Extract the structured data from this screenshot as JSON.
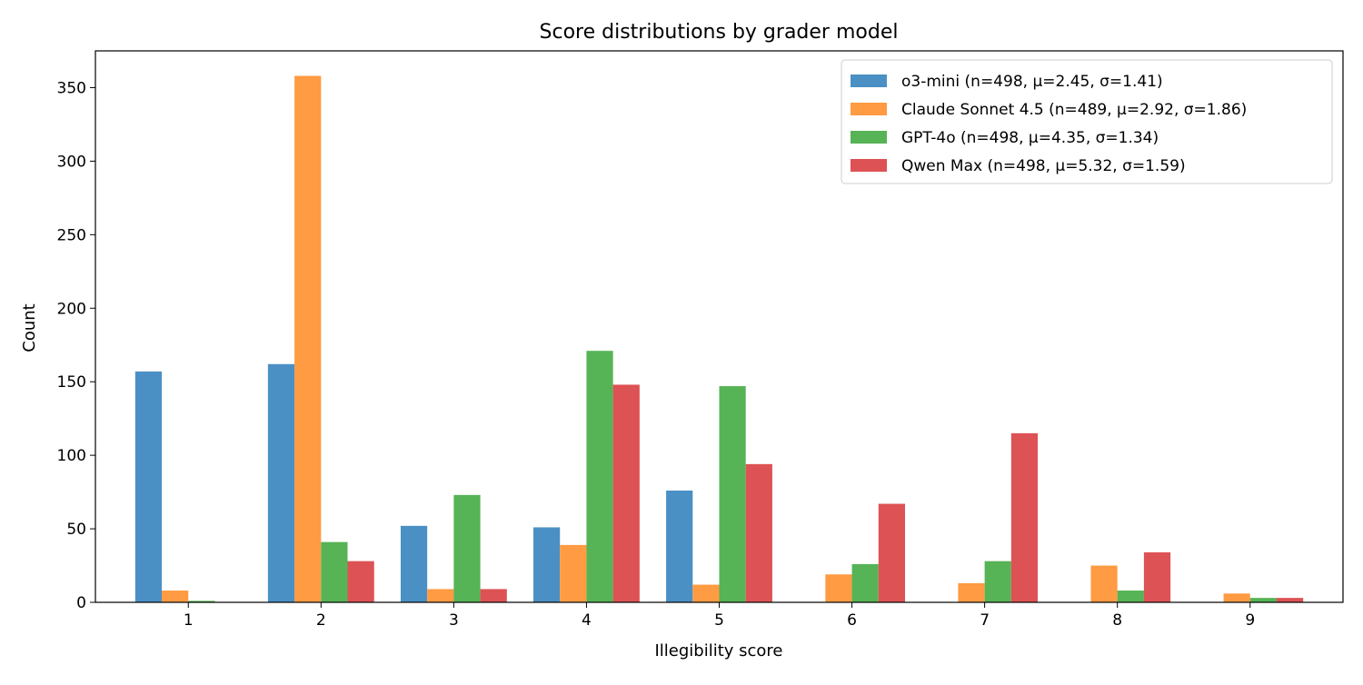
{
  "chart_data": {
    "type": "bar",
    "title": "Score distributions by grader model",
    "xlabel": "Illegibility score",
    "ylabel": "Count",
    "categories": [
      "1",
      "2",
      "3",
      "4",
      "5",
      "6",
      "7",
      "8",
      "9"
    ],
    "ylim": [
      0,
      375
    ],
    "yticks": [
      0,
      50,
      100,
      150,
      200,
      250,
      300,
      350
    ],
    "grid": false,
    "legend_position": "top-right",
    "series": [
      {
        "name": "o3-mini (n=498, μ=2.45, σ=1.41)",
        "color": "#4a90c4",
        "values": [
          157,
          162,
          52,
          51,
          76,
          0,
          0,
          0,
          0
        ]
      },
      {
        "name": "Claude Sonnet 4.5 (n=489, μ=2.92, σ=1.86)",
        "color": "#ff9b42",
        "values": [
          8,
          358,
          9,
          39,
          12,
          19,
          13,
          25,
          6
        ]
      },
      {
        "name": "GPT-4o (n=498, μ=4.35, σ=1.34)",
        "color": "#56b356",
        "values": [
          1,
          41,
          73,
          171,
          147,
          26,
          28,
          8,
          3
        ]
      },
      {
        "name": "Qwen Max (n=498, μ=5.32, σ=1.59)",
        "color": "#dd5254",
        "values": [
          0,
          28,
          9,
          148,
          94,
          67,
          115,
          34,
          3
        ]
      }
    ]
  }
}
